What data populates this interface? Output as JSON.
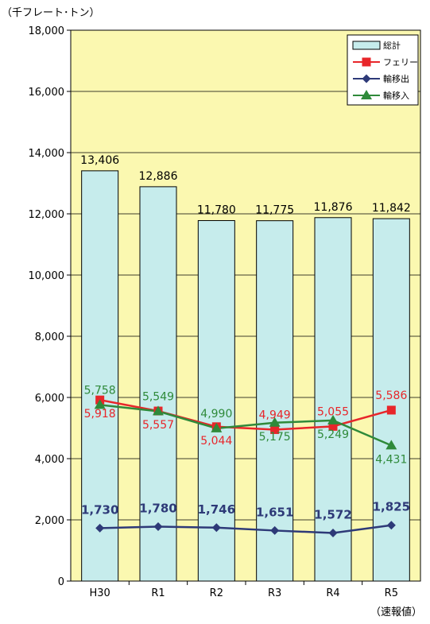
{
  "chart_data": {
    "type": "bar",
    "unit_label": "（千フレート･トン）",
    "sub_label": "（速報値）",
    "categories": [
      "H30",
      "R1",
      "R2",
      "R3",
      "R4",
      "R5"
    ],
    "ylim": [
      0,
      18000
    ],
    "yticks": [
      0,
      2000,
      4000,
      6000,
      8000,
      10000,
      12000,
      14000,
      16000,
      18000
    ],
    "ytick_labels": [
      "0",
      "2,000",
      "4,000",
      "6,000",
      "8,000",
      "10,000",
      "12,000",
      "14,000",
      "16,000",
      "18,000"
    ],
    "grid": true,
    "legend_position": "top-right",
    "series": [
      {
        "name": "総計",
        "kind": "bar",
        "color": "#c6ecec",
        "values": [
          13406,
          12886,
          11780,
          11775,
          11876,
          11842
        ],
        "labels": [
          "13,406",
          "12,886",
          "11,780",
          "11,775",
          "11,876",
          "11,842"
        ]
      },
      {
        "name": "フェリー",
        "kind": "line",
        "marker": "square",
        "color": "#e8262a",
        "values": [
          5918,
          5557,
          5044,
          4949,
          5055,
          5586
        ],
        "labels": [
          "5,918",
          "5,557",
          "5,044",
          "4,949",
          "5,055",
          "5,586"
        ]
      },
      {
        "name": "輸移出",
        "kind": "line",
        "marker": "diamond",
        "color": "#2e3a78",
        "values": [
          1730,
          1780,
          1746,
          1651,
          1572,
          1825
        ],
        "labels": [
          "1,730",
          "1,780",
          "1,746",
          "1,651",
          "1,572",
          "1,825"
        ]
      },
      {
        "name": "輸移入",
        "kind": "line",
        "marker": "triangle",
        "color": "#2f8a3a",
        "values": [
          5758,
          5549,
          4990,
          5175,
          5249,
          4431
        ],
        "labels": [
          "5,758",
          "5,549",
          "4,990",
          "5,175",
          "5,249",
          "4,431"
        ]
      }
    ],
    "colors": {
      "plot_bg": "#fbf8b0",
      "bar_stroke": "#000000",
      "grid": "#000000"
    }
  }
}
